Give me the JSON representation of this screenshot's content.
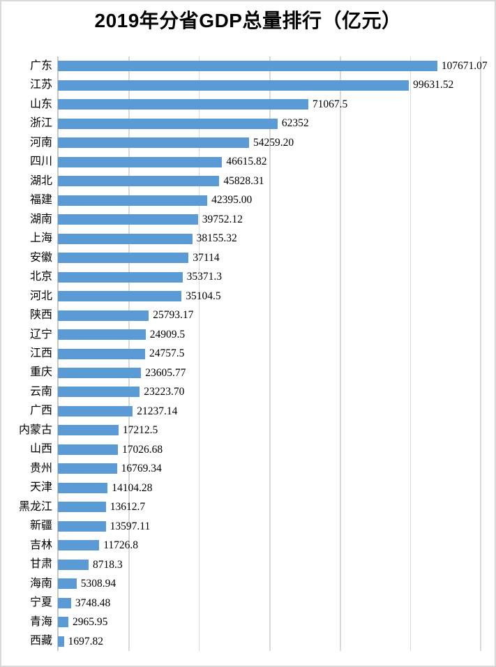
{
  "chart_data": {
    "type": "bar",
    "orientation": "horizontal",
    "title": "2019年分省GDP总量排行（亿元）",
    "legend": "none",
    "grid": "vertical",
    "value_axis": {
      "min": 0,
      "max": 120000,
      "major_unit": 20000,
      "labels_visible": false
    },
    "bar_color": "#5B9BD5",
    "gridline_color": "#D9D9D9",
    "axis_line_color": "#C6C6C6",
    "text_color": "#000000",
    "frame_border_color": "#D9D9D9",
    "bars": [
      {
        "label": "广东",
        "value": 107671.07,
        "value_label": "107671.07"
      },
      {
        "label": "江苏",
        "value": 99631.52,
        "value_label": "99631.52"
      },
      {
        "label": "山东",
        "value": 71067.5,
        "value_label": "71067.5"
      },
      {
        "label": "浙江",
        "value": 62352,
        "value_label": "62352"
      },
      {
        "label": "河南",
        "value": 54259.2,
        "value_label": "54259.20"
      },
      {
        "label": "四川",
        "value": 46615.82,
        "value_label": "46615.82"
      },
      {
        "label": "湖北",
        "value": 45828.31,
        "value_label": "45828.31"
      },
      {
        "label": "福建",
        "value": 42395.0,
        "value_label": "42395.00"
      },
      {
        "label": "湖南",
        "value": 39752.12,
        "value_label": "39752.12"
      },
      {
        "label": "上海",
        "value": 38155.32,
        "value_label": "38155.32"
      },
      {
        "label": "安徽",
        "value": 37114,
        "value_label": "37114"
      },
      {
        "label": "北京",
        "value": 35371.3,
        "value_label": "35371.3"
      },
      {
        "label": "河北",
        "value": 35104.5,
        "value_label": "35104.5"
      },
      {
        "label": "陕西",
        "value": 25793.17,
        "value_label": "25793.17"
      },
      {
        "label": "辽宁",
        "value": 24909.5,
        "value_label": "24909.5"
      },
      {
        "label": "江西",
        "value": 24757.5,
        "value_label": "24757.5"
      },
      {
        "label": "重庆",
        "value": 23605.77,
        "value_label": "23605.77"
      },
      {
        "label": "云南",
        "value": 23223.7,
        "value_label": "23223.70"
      },
      {
        "label": "广西",
        "value": 21237.14,
        "value_label": "21237.14"
      },
      {
        "label": "内蒙古",
        "value": 17212.5,
        "value_label": "17212.5"
      },
      {
        "label": "山西",
        "value": 17026.68,
        "value_label": "17026.68"
      },
      {
        "label": "贵州",
        "value": 16769.34,
        "value_label": "16769.34"
      },
      {
        "label": "天津",
        "value": 14104.28,
        "value_label": "14104.28"
      },
      {
        "label": "黑龙江",
        "value": 13612.7,
        "value_label": "13612.7"
      },
      {
        "label": "新疆",
        "value": 13597.11,
        "value_label": "13597.11"
      },
      {
        "label": "吉林",
        "value": 11726.8,
        "value_label": "11726.8"
      },
      {
        "label": "甘肃",
        "value": 8718.3,
        "value_label": "8718.3"
      },
      {
        "label": "海南",
        "value": 5308.94,
        "value_label": "5308.94"
      },
      {
        "label": "宁夏",
        "value": 3748.48,
        "value_label": "3748.48"
      },
      {
        "label": "青海",
        "value": 2965.95,
        "value_label": "2965.95"
      },
      {
        "label": "西藏",
        "value": 1697.82,
        "value_label": "1697.82"
      }
    ]
  }
}
